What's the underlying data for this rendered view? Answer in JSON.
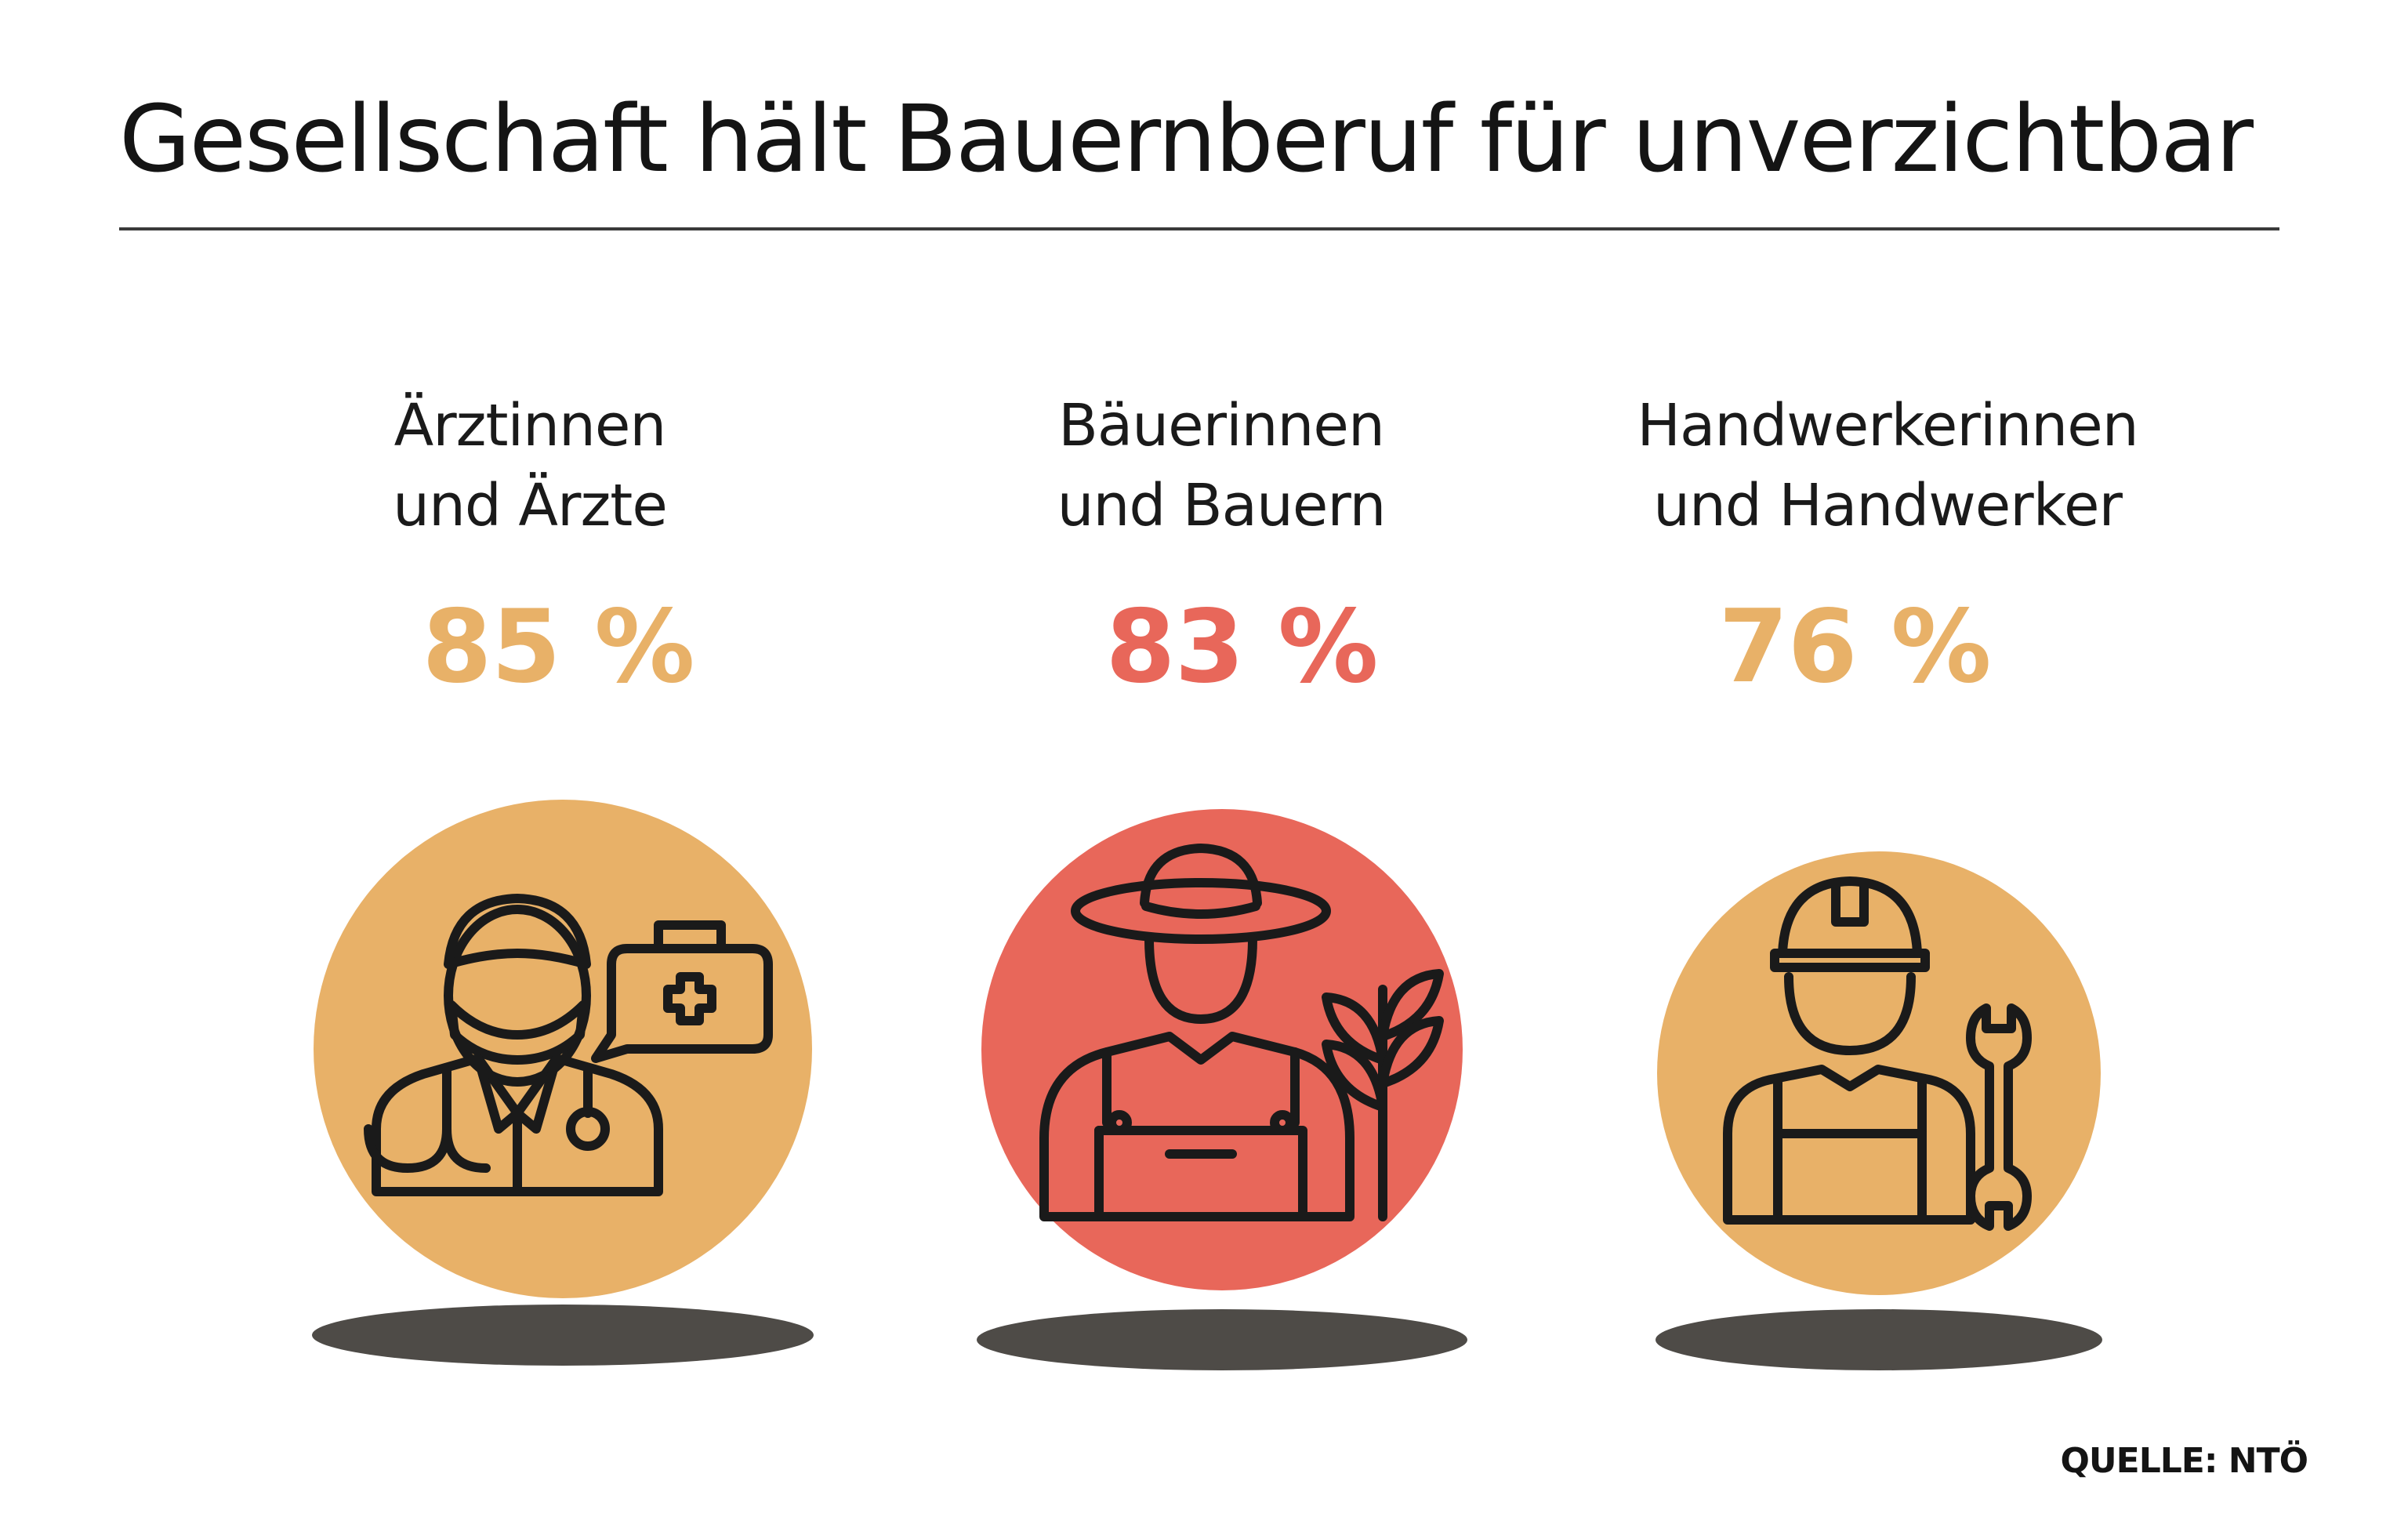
{
  "title": "Gesellschaft hält Bauernberuf für unverzichtbar",
  "source": "QUELLE: NTÖ",
  "colors": {
    "sand": "#e8b168",
    "coral": "#e8675a",
    "shadow": "#4e4b47",
    "ink": "#1a1a1a"
  },
  "chart_data": {
    "type": "table",
    "title": "Gesellschaft hält Bauernberuf für unverzichtbar",
    "unit": "%",
    "categories": [
      "Ärztinnen und Ärzte",
      "Bäuerinnen und Bauern",
      "Handwerkerinnen und Handwerker"
    ],
    "values": [
      85,
      83,
      76
    ],
    "items": [
      {
        "label_line1": "Ärztinnen",
        "label_line2": "und Ärzte",
        "value": 85,
        "value_text": "85 %",
        "color": "#e8b168",
        "icon": "doctor-icon"
      },
      {
        "label_line1": "Bäuerinnen",
        "label_line2": "und Bauern",
        "value": 83,
        "value_text": "83 %",
        "color": "#e8675a",
        "icon": "farmer-icon"
      },
      {
        "label_line1": "Handwerkerinnen",
        "label_line2": "und Handwerker",
        "value": 76,
        "value_text": "76 %",
        "color": "#e8b168",
        "icon": "craftsman-icon"
      }
    ]
  }
}
